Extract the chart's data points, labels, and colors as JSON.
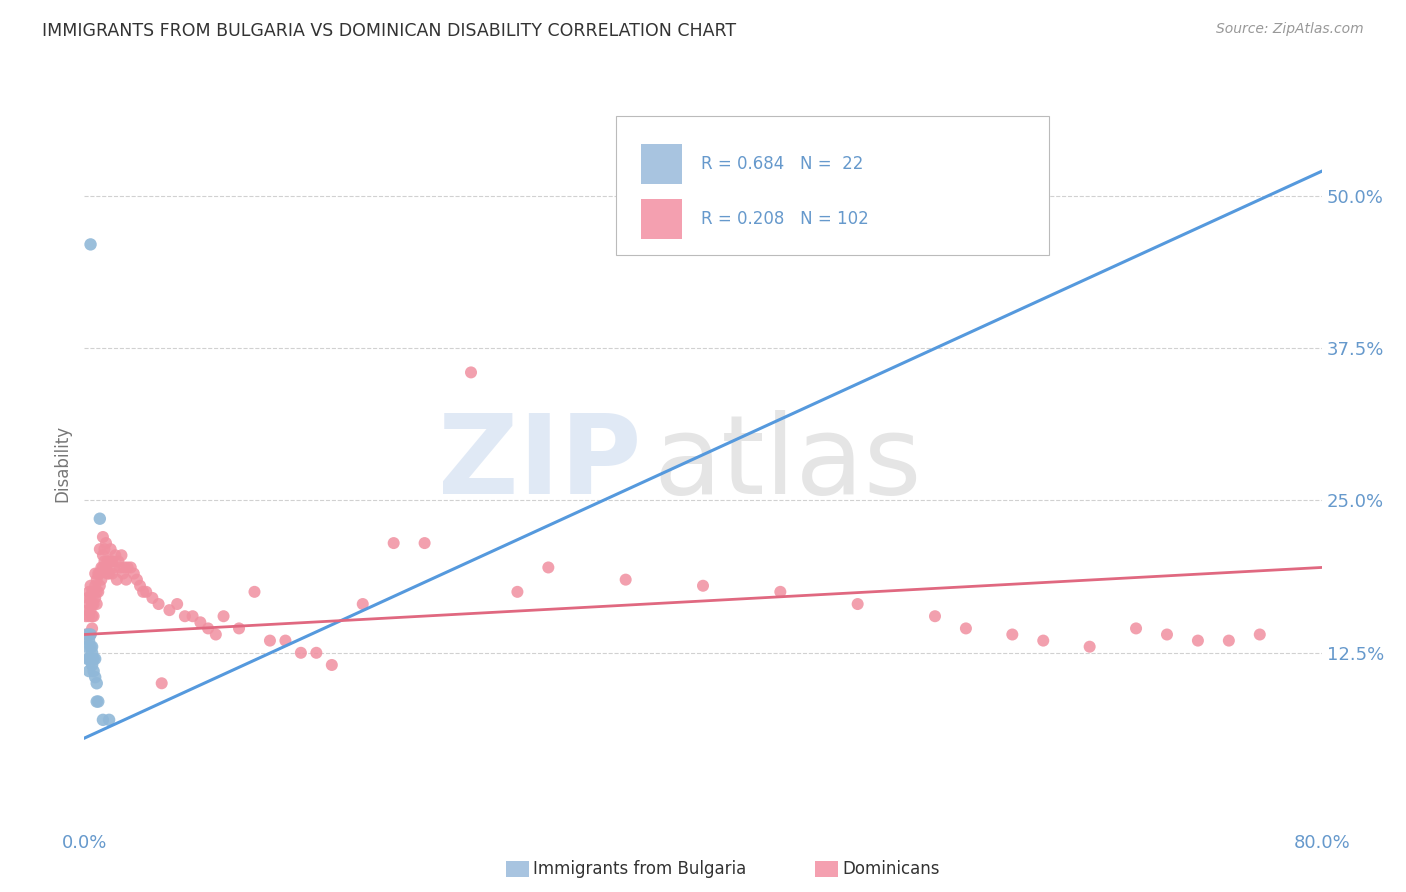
{
  "title": "IMMIGRANTS FROM BULGARIA VS DOMINICAN DISABILITY CORRELATION CHART",
  "source": "Source: ZipAtlas.com",
  "ylabel": "Disability",
  "legend_entries": [
    {
      "label": "Immigrants from Bulgaria",
      "color": "#a8c4e0",
      "R": 0.684,
      "N": 22
    },
    {
      "label": "Dominicans",
      "color": "#f4a0b0",
      "R": 0.208,
      "N": 102
    }
  ],
  "bulgaria_color": "#90b8d8",
  "dominican_color": "#f090a0",
  "bulgaria_line_color": "#5599dd",
  "dominican_line_color": "#e06880",
  "bulgaria_x": [
    0.001,
    0.002,
    0.002,
    0.003,
    0.003,
    0.003,
    0.004,
    0.004,
    0.004,
    0.005,
    0.005,
    0.005,
    0.006,
    0.006,
    0.007,
    0.007,
    0.008,
    0.008,
    0.009,
    0.01,
    0.012,
    0.016
  ],
  "bulgaria_y": [
    0.13,
    0.12,
    0.14,
    0.11,
    0.135,
    0.12,
    0.46,
    0.13,
    0.14,
    0.125,
    0.13,
    0.115,
    0.12,
    0.11,
    0.105,
    0.12,
    0.085,
    0.1,
    0.085,
    0.235,
    0.07,
    0.07
  ],
  "dominican_x": [
    0.001,
    0.001,
    0.002,
    0.002,
    0.002,
    0.003,
    0.003,
    0.003,
    0.003,
    0.004,
    0.004,
    0.004,
    0.004,
    0.005,
    0.005,
    0.005,
    0.005,
    0.006,
    0.006,
    0.006,
    0.007,
    0.007,
    0.007,
    0.008,
    0.008,
    0.008,
    0.009,
    0.009,
    0.01,
    0.01,
    0.01,
    0.011,
    0.011,
    0.012,
    0.012,
    0.012,
    0.013,
    0.013,
    0.014,
    0.014,
    0.015,
    0.015,
    0.016,
    0.016,
    0.017,
    0.017,
    0.018,
    0.018,
    0.019,
    0.02,
    0.021,
    0.022,
    0.023,
    0.024,
    0.025,
    0.026,
    0.027,
    0.028,
    0.03,
    0.032,
    0.034,
    0.036,
    0.038,
    0.04,
    0.044,
    0.048,
    0.05,
    0.055,
    0.06,
    0.065,
    0.07,
    0.075,
    0.08,
    0.085,
    0.09,
    0.1,
    0.11,
    0.12,
    0.13,
    0.14,
    0.15,
    0.16,
    0.18,
    0.2,
    0.22,
    0.25,
    0.28,
    0.3,
    0.35,
    0.4,
    0.45,
    0.5,
    0.55,
    0.57,
    0.6,
    0.62,
    0.65,
    0.68,
    0.7,
    0.72,
    0.74,
    0.76
  ],
  "dominican_y": [
    0.14,
    0.155,
    0.14,
    0.16,
    0.17,
    0.155,
    0.165,
    0.175,
    0.14,
    0.14,
    0.16,
    0.17,
    0.18,
    0.145,
    0.155,
    0.165,
    0.175,
    0.155,
    0.165,
    0.175,
    0.17,
    0.18,
    0.19,
    0.165,
    0.175,
    0.185,
    0.175,
    0.19,
    0.18,
    0.19,
    0.21,
    0.185,
    0.195,
    0.195,
    0.205,
    0.22,
    0.2,
    0.21,
    0.195,
    0.215,
    0.19,
    0.2,
    0.19,
    0.2,
    0.2,
    0.21,
    0.19,
    0.2,
    0.195,
    0.205,
    0.185,
    0.2,
    0.195,
    0.205,
    0.19,
    0.195,
    0.185,
    0.195,
    0.195,
    0.19,
    0.185,
    0.18,
    0.175,
    0.175,
    0.17,
    0.165,
    0.1,
    0.16,
    0.165,
    0.155,
    0.155,
    0.15,
    0.145,
    0.14,
    0.155,
    0.145,
    0.175,
    0.135,
    0.135,
    0.125,
    0.125,
    0.115,
    0.165,
    0.215,
    0.215,
    0.355,
    0.175,
    0.195,
    0.185,
    0.18,
    0.175,
    0.165,
    0.155,
    0.145,
    0.14,
    0.135,
    0.13,
    0.145,
    0.14,
    0.135,
    0.135,
    0.14
  ],
  "bul_line_x0": 0.0,
  "bul_line_x1": 0.8,
  "bul_line_y0": 0.055,
  "bul_line_y1": 0.52,
  "dom_line_x0": 0.0,
  "dom_line_x1": 0.8,
  "dom_line_y0": 0.14,
  "dom_line_y1": 0.195,
  "xlim": [
    0.0,
    0.8
  ],
  "ylim": [
    -0.02,
    0.58
  ],
  "yticks": [
    0.125,
    0.25,
    0.375,
    0.5
  ],
  "ytick_labels": [
    "12.5%",
    "25.0%",
    "37.5%",
    "50.0%"
  ],
  "bg_color": "#ffffff",
  "grid_color": "#cccccc",
  "title_color": "#333333",
  "axis_color": "#6699cc"
}
